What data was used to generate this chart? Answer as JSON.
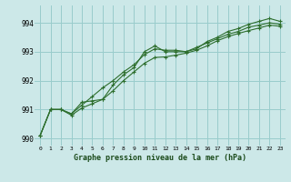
{
  "title": "Graphe pression niveau de la mer (hPa)",
  "bg_color": "#cce8e8",
  "grid_color": "#99cccc",
  "line_color": "#2d6e2d",
  "marker_color": "#2d6e2d",
  "xlim": [
    -0.5,
    23.5
  ],
  "ylim": [
    989.75,
    994.6
  ],
  "yticks": [
    990,
    991,
    992,
    993,
    994
  ],
  "xticks": [
    0,
    1,
    2,
    3,
    4,
    5,
    6,
    7,
    8,
    9,
    10,
    11,
    12,
    13,
    14,
    15,
    16,
    17,
    18,
    19,
    20,
    21,
    22,
    23
  ],
  "series1": [
    990.1,
    991.0,
    991.0,
    990.85,
    991.25,
    991.3,
    991.35,
    991.85,
    992.2,
    992.45,
    993.0,
    993.2,
    993.0,
    993.0,
    993.0,
    993.1,
    993.35,
    993.5,
    993.7,
    993.8,
    993.95,
    994.05,
    994.15,
    994.05
  ],
  "series2": [
    990.1,
    991.0,
    991.0,
    990.85,
    991.15,
    991.45,
    991.75,
    992.0,
    992.3,
    992.55,
    992.9,
    993.1,
    993.05,
    993.05,
    993.0,
    993.15,
    993.3,
    993.45,
    993.6,
    993.7,
    993.85,
    993.92,
    994.0,
    993.95
  ],
  "series3": [
    990.1,
    991.0,
    991.0,
    990.8,
    991.05,
    991.2,
    991.35,
    991.65,
    992.0,
    992.3,
    992.6,
    992.8,
    992.82,
    992.88,
    992.95,
    993.05,
    993.2,
    993.38,
    993.52,
    993.63,
    993.73,
    993.82,
    993.92,
    993.88
  ]
}
